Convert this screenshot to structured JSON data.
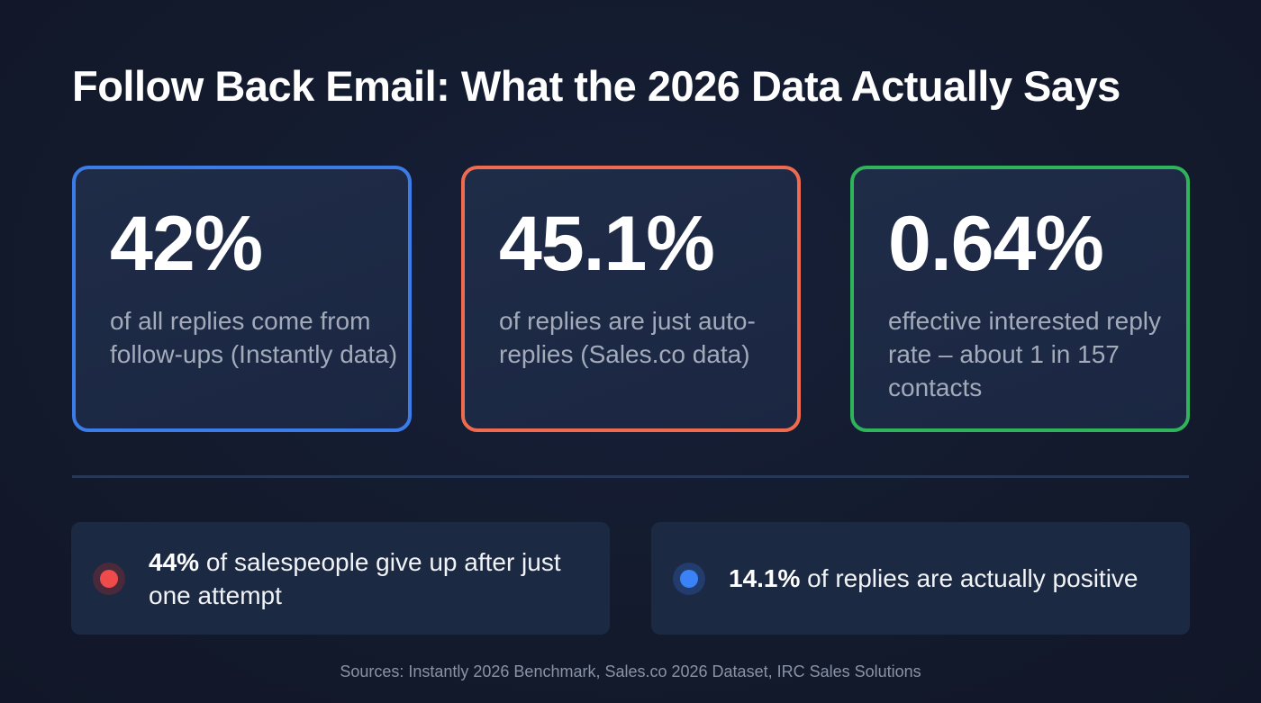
{
  "title": "Follow Back Email: What the 2026 Data Actually Says",
  "cards": [
    {
      "value": "42%",
      "description": "of all replies come from follow-ups (Instantly data)",
      "accent": "#3b7ce8"
    },
    {
      "value": "45.1%",
      "description": "of replies are just auto-replies (Sales.co data)",
      "accent": "#ef6b4f"
    },
    {
      "value": "0.64%",
      "description": "effective interested reply rate – about 1 in 157 contacts",
      "accent": "#2fb35b"
    }
  ],
  "facts": [
    {
      "highlight": "44%",
      "text": " of salespeople give up after just one attempt",
      "icon": "red-dot-icon",
      "accent": "#ef4b4b"
    },
    {
      "highlight": "14.1%",
      "text": " of replies are actually positive",
      "icon": "blue-dot-icon",
      "accent": "#3b82f6"
    }
  ],
  "sources": "Sources: Instantly 2026 Benchmark, Sales.co 2026 Dataset, IRC Sales Solutions"
}
